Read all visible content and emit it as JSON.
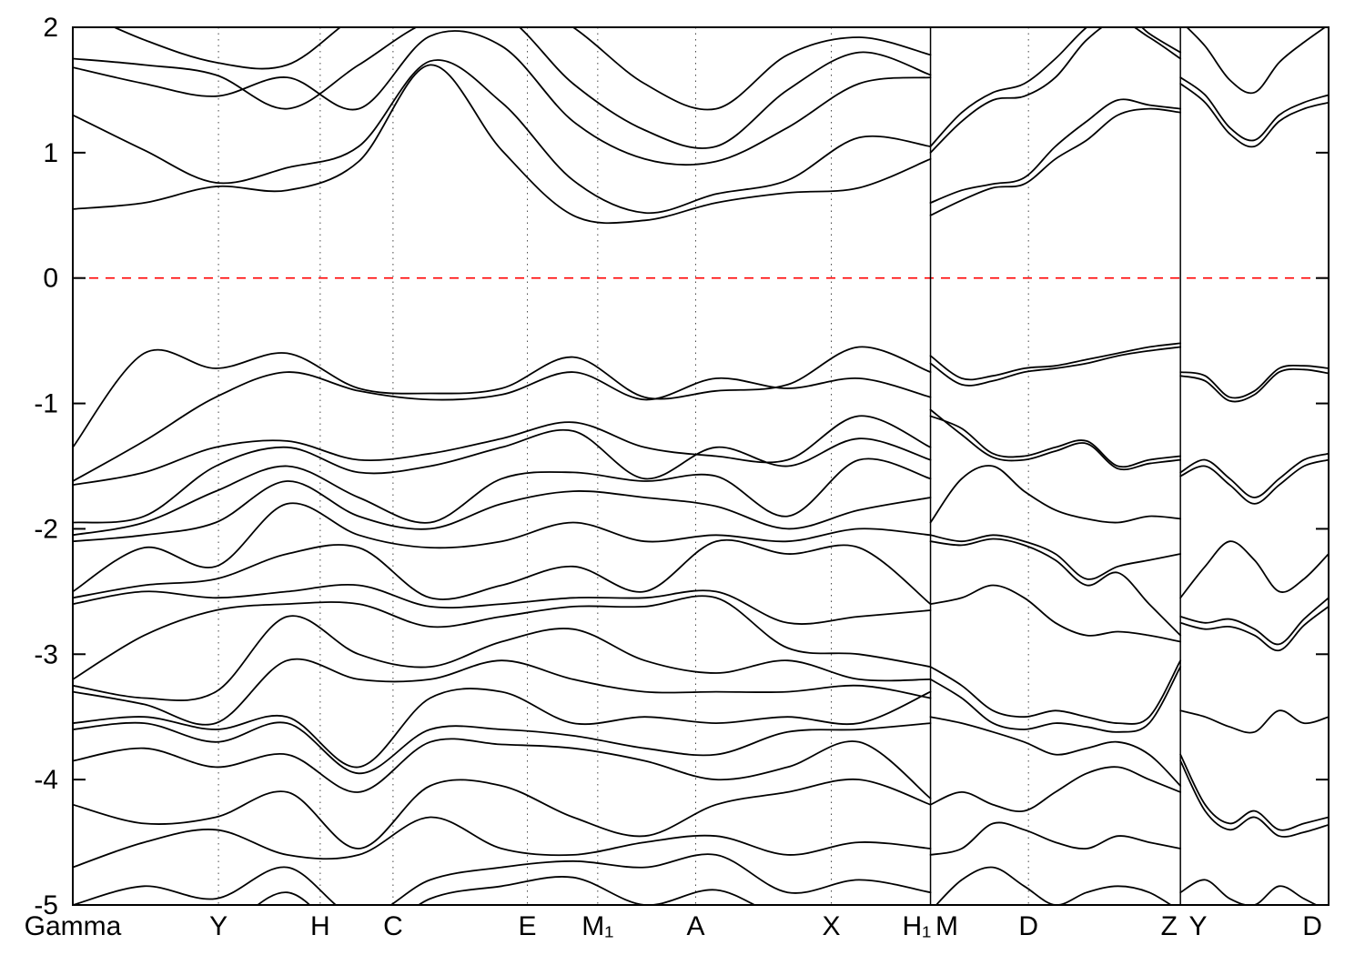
{
  "chart_data": {
    "type": "line",
    "title": "",
    "xlabel": "",
    "ylabel": "",
    "description": "Electronic band structure along high-symmetry k-path, energies in eV relative to Fermi level",
    "ylim": [
      -5,
      2
    ],
    "yticks": [
      2,
      1,
      0,
      -1,
      -2,
      -3,
      -4,
      -5
    ],
    "fermi_level": 0,
    "fermi_color": "#ff0000",
    "band_color": "#000000",
    "grid_color": "#444444",
    "axis_color": "#000000",
    "kpath_labels": [
      {
        "label": "Gamma",
        "x": 0.0
      },
      {
        "label": "Y",
        "x": 0.116
      },
      {
        "label": "H",
        "x": 0.197
      },
      {
        "label": "C",
        "x": 0.255
      },
      {
        "label": "E",
        "x": 0.362
      },
      {
        "label": "M₁",
        "x": 0.418
      },
      {
        "label": "A",
        "x": 0.496
      },
      {
        "label": "X",
        "x": 0.604
      },
      {
        "label": "H₁",
        "x": 0.672
      },
      {
        "label": "M",
        "x": 0.696
      },
      {
        "label": "D",
        "x": 0.761
      },
      {
        "label": "Z",
        "x": 0.873
      },
      {
        "label": "Y",
        "x": 0.896
      },
      {
        "label": "D",
        "x": 0.987
      }
    ],
    "panel_boundaries": [
      0.683,
      0.882
    ],
    "panels": [
      {
        "x0": 0.0,
        "x1": 0.683,
        "gridlines": [
          0.116,
          0.197,
          0.255,
          0.362,
          0.418,
          0.496,
          0.604
        ],
        "bands": [
          [
            0.55,
            0.6,
            0.73,
            0.7,
            0.93,
            1.7,
            1.02,
            0.5,
            0.46,
            0.6,
            0.68,
            0.72,
            0.95
          ],
          [
            1.3,
            1.02,
            0.76,
            0.88,
            1.05,
            1.73,
            1.4,
            0.78,
            0.52,
            0.67,
            0.78,
            1.12,
            1.05
          ],
          [
            1.68,
            1.55,
            1.45,
            1.6,
            1.35,
            1.93,
            1.85,
            1.25,
            0.95,
            0.93,
            1.2,
            1.55,
            1.6
          ],
          [
            1.75,
            1.7,
            1.62,
            1.35,
            1.7,
            2.05,
            2.1,
            1.55,
            1.18,
            1.05,
            1.5,
            1.8,
            1.62
          ],
          [
            2.15,
            1.9,
            1.72,
            1.7,
            2.1,
            2.3,
            2.3,
            2.0,
            1.55,
            1.35,
            1.78,
            1.92,
            1.78
          ],
          [
            -1.35,
            -0.6,
            -0.72,
            -0.6,
            -0.88,
            -0.92,
            -0.88,
            -0.63,
            -0.95,
            -0.9,
            -0.85,
            -0.55,
            -0.75
          ],
          [
            -1.62,
            -1.3,
            -0.95,
            -0.75,
            -0.9,
            -0.97,
            -0.93,
            -0.75,
            -0.97,
            -0.8,
            -0.88,
            -0.8,
            -0.95
          ],
          [
            -1.65,
            -1.55,
            -1.35,
            -1.3,
            -1.45,
            -1.4,
            -1.28,
            -1.15,
            -1.35,
            -1.42,
            -1.45,
            -1.1,
            -1.35
          ],
          [
            -1.95,
            -1.9,
            -1.5,
            -1.35,
            -1.55,
            -1.5,
            -1.35,
            -1.22,
            -1.6,
            -1.35,
            -1.5,
            -1.28,
            -1.45
          ],
          [
            -2.05,
            -1.95,
            -1.7,
            -1.5,
            -1.75,
            -1.95,
            -1.6,
            -1.55,
            -1.62,
            -1.58,
            -1.9,
            -1.45,
            -1.6
          ],
          [
            -2.1,
            -2.05,
            -1.95,
            -1.62,
            -1.9,
            -2.0,
            -1.8,
            -1.7,
            -1.75,
            -1.82,
            -2.0,
            -1.85,
            -1.75
          ],
          [
            -2.5,
            -2.15,
            -2.3,
            -1.8,
            -2.05,
            -2.15,
            -2.1,
            -1.95,
            -2.1,
            -2.05,
            -2.1,
            -2.0,
            -2.05
          ],
          [
            -2.55,
            -2.45,
            -2.4,
            -2.2,
            -2.15,
            -2.55,
            -2.45,
            -2.3,
            -2.5,
            -2.1,
            -2.2,
            -2.15,
            -2.6
          ],
          [
            -2.6,
            -2.5,
            -2.55,
            -2.5,
            -2.45,
            -2.62,
            -2.6,
            -2.55,
            -2.55,
            -2.5,
            -2.75,
            -2.7,
            -2.65
          ],
          [
            -3.2,
            -2.85,
            -2.65,
            -2.6,
            -2.6,
            -2.78,
            -2.7,
            -2.62,
            -2.62,
            -2.55,
            -2.95,
            -3.0,
            -3.1
          ],
          [
            -3.25,
            -3.35,
            -3.3,
            -2.7,
            -3.0,
            -3.1,
            -2.9,
            -2.8,
            -3.05,
            -3.15,
            -3.05,
            -3.2,
            -3.2
          ],
          [
            -3.3,
            -3.4,
            -3.55,
            -3.05,
            -3.2,
            -3.2,
            -3.05,
            -3.2,
            -3.3,
            -3.3,
            -3.3,
            -3.25,
            -3.35
          ],
          [
            -3.55,
            -3.5,
            -3.6,
            -3.5,
            -3.9,
            -3.35,
            -3.3,
            -3.55,
            -3.5,
            -3.55,
            -3.5,
            -3.55,
            -3.3
          ],
          [
            -3.6,
            -3.55,
            -3.7,
            -3.55,
            -3.95,
            -3.6,
            -3.6,
            -3.65,
            -3.75,
            -3.8,
            -3.62,
            -3.6,
            -3.55
          ],
          [
            -3.85,
            -3.75,
            -3.9,
            -3.8,
            -4.1,
            -3.7,
            -3.72,
            -3.75,
            -3.85,
            -4.0,
            -3.9,
            -3.7,
            -4.15
          ],
          [
            -4.2,
            -4.35,
            -4.3,
            -4.1,
            -4.55,
            -4.05,
            -4.05,
            -4.3,
            -4.45,
            -4.2,
            -4.1,
            -4.0,
            -4.2
          ],
          [
            -4.7,
            -4.5,
            -4.4,
            -4.6,
            -4.6,
            -4.3,
            -4.55,
            -4.6,
            -4.5,
            -4.45,
            -4.6,
            -4.5,
            -4.55
          ],
          [
            -5.0,
            -4.85,
            -4.95,
            -4.7,
            -5.1,
            -4.8,
            -4.7,
            -4.65,
            -4.7,
            -4.6,
            -4.9,
            -4.8,
            -4.9
          ],
          [
            -5.15,
            -5.0,
            -5.2,
            -4.9,
            -5.3,
            -4.95,
            -4.85,
            -4.78,
            -5.0,
            -4.88,
            -5.1,
            -5.0,
            -5.1
          ]
        ]
      },
      {
        "x0": 0.683,
        "x1": 0.882,
        "gridlines": [
          0.761
        ],
        "bands": [
          [
            0.5,
            0.62,
            0.72,
            0.75,
            0.95,
            1.1,
            1.3,
            1.35,
            1.32
          ],
          [
            0.6,
            0.7,
            0.75,
            0.8,
            1.05,
            1.25,
            1.42,
            1.38,
            1.35
          ],
          [
            1.0,
            1.25,
            1.42,
            1.45,
            1.6,
            1.9,
            2.05,
            1.92,
            1.75
          ],
          [
            1.05,
            1.32,
            1.48,
            1.55,
            1.75,
            2.0,
            2.15,
            1.95,
            1.8
          ],
          [
            -0.62,
            -0.8,
            -0.78,
            -0.72,
            -0.7,
            -0.65,
            -0.6,
            -0.55,
            -0.52
          ],
          [
            -0.68,
            -0.85,
            -0.82,
            -0.75,
            -0.72,
            -0.68,
            -0.62,
            -0.58,
            -0.55
          ],
          [
            -1.1,
            -1.2,
            -1.4,
            -1.42,
            -1.35,
            -1.3,
            -1.5,
            -1.45,
            -1.42
          ],
          [
            -1.05,
            -1.25,
            -1.43,
            -1.45,
            -1.38,
            -1.32,
            -1.52,
            -1.48,
            -1.45
          ],
          [
            -1.95,
            -1.6,
            -1.5,
            -1.7,
            -1.85,
            -1.92,
            -1.95,
            -1.9,
            -1.92
          ],
          [
            -2.05,
            -2.1,
            -2.05,
            -2.1,
            -2.2,
            -2.4,
            -2.3,
            -2.25,
            -2.2
          ],
          [
            -2.1,
            -2.13,
            -2.08,
            -2.13,
            -2.25,
            -2.45,
            -2.35,
            -2.6,
            -2.85
          ],
          [
            -2.6,
            -2.55,
            -2.45,
            -2.55,
            -2.75,
            -2.85,
            -2.82,
            -2.85,
            -2.9
          ],
          [
            -3.1,
            -3.25,
            -3.45,
            -3.5,
            -3.45,
            -3.5,
            -3.55,
            -3.5,
            -3.05
          ],
          [
            -3.2,
            -3.35,
            -3.55,
            -3.6,
            -3.55,
            -3.58,
            -3.62,
            -3.55,
            -3.1
          ],
          [
            -3.5,
            -3.55,
            -3.62,
            -3.7,
            -3.8,
            -3.75,
            -3.7,
            -3.8,
            -4.05
          ],
          [
            -4.2,
            -4.1,
            -4.2,
            -4.25,
            -4.1,
            -3.95,
            -3.9,
            -4.0,
            -4.1
          ],
          [
            -4.6,
            -4.55,
            -4.35,
            -4.4,
            -4.5,
            -4.55,
            -4.45,
            -4.5,
            -4.55
          ],
          [
            -5.05,
            -4.8,
            -4.7,
            -4.85,
            -5.0,
            -4.9,
            -4.85,
            -4.9,
            -5.05
          ]
        ]
      },
      {
        "x0": 0.882,
        "x1": 1.0,
        "gridlines": [],
        "bands": [
          [
            1.55,
            1.4,
            1.15,
            1.05,
            1.25,
            1.35,
            1.4
          ],
          [
            1.6,
            1.46,
            1.2,
            1.1,
            1.3,
            1.4,
            1.46
          ],
          [
            2.05,
            1.85,
            1.58,
            1.48,
            1.72,
            1.88,
            2.02
          ],
          [
            -0.75,
            -0.78,
            -0.95,
            -0.9,
            -0.72,
            -0.7,
            -0.72
          ],
          [
            -0.78,
            -0.82,
            -0.98,
            -0.93,
            -0.75,
            -0.73,
            -0.76
          ],
          [
            -1.55,
            -1.45,
            -1.6,
            -1.75,
            -1.6,
            -1.45,
            -1.4
          ],
          [
            -1.58,
            -1.5,
            -1.65,
            -1.8,
            -1.65,
            -1.5,
            -1.45
          ],
          [
            -2.55,
            -2.3,
            -2.1,
            -2.25,
            -2.5,
            -2.4,
            -2.2
          ],
          [
            -2.7,
            -2.75,
            -2.72,
            -2.8,
            -2.92,
            -2.72,
            -2.55
          ],
          [
            -2.75,
            -2.8,
            -2.78,
            -2.85,
            -2.97,
            -2.77,
            -2.62
          ],
          [
            -3.45,
            -3.5,
            -3.58,
            -3.62,
            -3.45,
            -3.55,
            -3.5
          ],
          [
            -3.8,
            -4.2,
            -4.35,
            -4.25,
            -4.4,
            -4.35,
            -4.3
          ],
          [
            -3.85,
            -4.25,
            -4.4,
            -4.3,
            -4.45,
            -4.42,
            -4.36
          ],
          [
            -4.9,
            -4.8,
            -4.95,
            -5.0,
            -4.85,
            -4.95,
            -5.05
          ]
        ]
      }
    ]
  }
}
